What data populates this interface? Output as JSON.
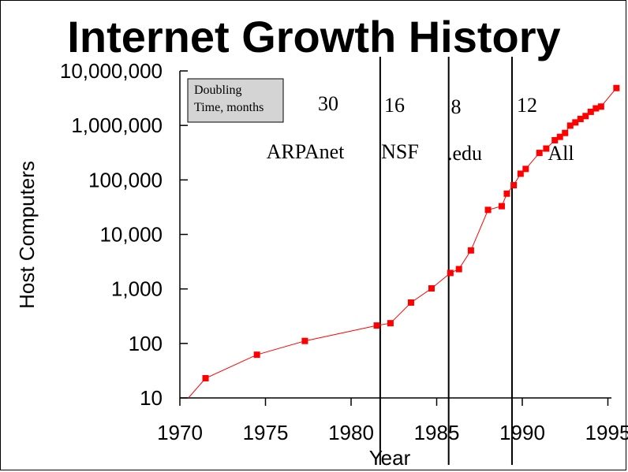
{
  "chart_data": {
    "type": "scatter",
    "title": "Internet Growth History",
    "xlabel": "Year",
    "ylabel": "Host Computers",
    "yscale": "log",
    "xlim": [
      1970,
      1996
    ],
    "ylim": [
      10,
      10000000
    ],
    "x_ticks": [
      1970,
      1975,
      1980,
      1985,
      1990,
      1995
    ],
    "x_tick_labels": [
      "1970",
      "1975",
      "1980",
      "1985",
      "1990",
      "1995"
    ],
    "y_ticks": [
      10,
      100,
      1000,
      10000,
      100000,
      1000000,
      10000000
    ],
    "y_tick_labels": [
      "10",
      "100",
      "1,000",
      "10,000",
      "100,000",
      "1,000,000",
      "10,000,000"
    ],
    "line_start": {
      "x": 1970.5,
      "y": 8
    },
    "series": [
      {
        "color": "#ff0000",
        "points": [
          {
            "x": 1971.5,
            "y": 23
          },
          {
            "x": 1974.5,
            "y": 62
          },
          {
            "x": 1977.3,
            "y": 111
          },
          {
            "x": 1981.5,
            "y": 213
          },
          {
            "x": 1982.3,
            "y": 235
          },
          {
            "x": 1983.5,
            "y": 562
          },
          {
            "x": 1984.7,
            "y": 1024
          },
          {
            "x": 1985.8,
            "y": 1961
          },
          {
            "x": 1986.3,
            "y": 2308
          },
          {
            "x": 1987.0,
            "y": 5089
          },
          {
            "x": 1988.0,
            "y": 28174
          },
          {
            "x": 1988.8,
            "y": 33000
          },
          {
            "x": 1989.1,
            "y": 56000
          },
          {
            "x": 1989.5,
            "y": 80000
          },
          {
            "x": 1989.9,
            "y": 130000
          },
          {
            "x": 1990.2,
            "y": 159000
          },
          {
            "x": 1991.0,
            "y": 313000
          },
          {
            "x": 1991.4,
            "y": 376000
          },
          {
            "x": 1991.9,
            "y": 535000
          },
          {
            "x": 1992.2,
            "y": 617000
          },
          {
            "x": 1992.5,
            "y": 727000
          },
          {
            "x": 1992.8,
            "y": 992000
          },
          {
            "x": 1993.1,
            "y": 1136000
          },
          {
            "x": 1993.4,
            "y": 1313000
          },
          {
            "x": 1993.7,
            "y": 1486000
          },
          {
            "x": 1994.0,
            "y": 1776000
          },
          {
            "x": 1994.3,
            "y": 2056000
          },
          {
            "x": 1994.6,
            "y": 2217000
          },
          {
            "x": 1995.5,
            "y": 4852000
          }
        ]
      }
    ],
    "dividers": [
      1981.7,
      1985.7,
      1989.4
    ],
    "doubling_box": [
      "Doubling",
      "Time, months"
    ],
    "eras": [
      {
        "name": "ARPAnet",
        "doubling": "30"
      },
      {
        "name": "NSF",
        "doubling": "16"
      },
      {
        "name": ".edu",
        "doubling": "8"
      },
      {
        "name": "All",
        "doubling": "12"
      }
    ],
    "grid": false,
    "legend": "none"
  }
}
